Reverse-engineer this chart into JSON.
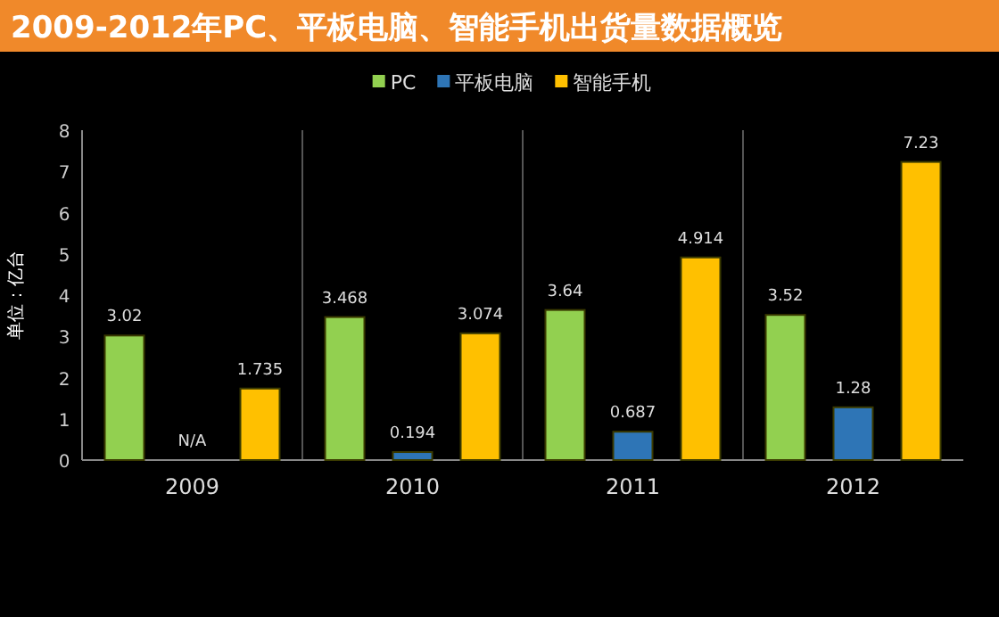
{
  "chart_data": {
    "type": "bar",
    "title": "2009-2012年PC、平板电脑、智能手机出货量数据概览",
    "ylabel": "单位：亿台",
    "categories": [
      "2009",
      "2010",
      "2011",
      "2012"
    ],
    "series": [
      {
        "name": "PC",
        "color": "#92d050",
        "values": [
          3.02,
          3.468,
          3.64,
          3.52
        ],
        "value_labels": [
          "3.02",
          "3.468",
          "3.64",
          "3.52"
        ]
      },
      {
        "name": "平板电脑",
        "color": "#2e75b6",
        "values": [
          null,
          0.194,
          0.687,
          1.28
        ],
        "value_labels": [
          "N/A",
          "0.194",
          "0.687",
          "1.28"
        ]
      },
      {
        "name": "智能手机",
        "color": "#ffc000",
        "values": [
          1.735,
          3.074,
          4.914,
          7.23
        ],
        "value_labels": [
          "1.735",
          "3.074",
          "4.914",
          "7.23"
        ]
      }
    ],
    "ylim": [
      0,
      8
    ],
    "yticks": [
      0,
      1,
      2,
      3,
      4,
      5,
      6,
      7,
      8
    ],
    "grid": "x",
    "legend": "top"
  }
}
